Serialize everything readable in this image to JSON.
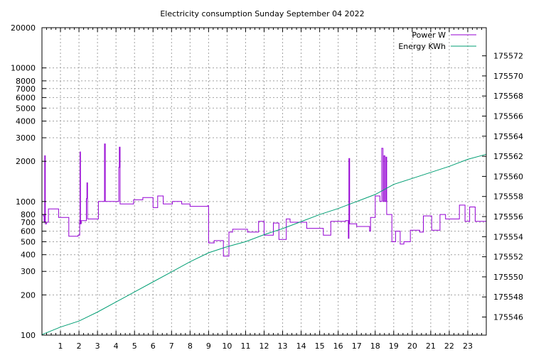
{
  "chart_data": {
    "type": "line",
    "title": "Electricity consumption Sunday September 04 2022",
    "x_axis": {
      "range": [
        0,
        24
      ],
      "ticks": [
        1,
        2,
        3,
        4,
        5,
        6,
        7,
        8,
        9,
        10,
        11,
        12,
        13,
        14,
        15,
        16,
        17,
        18,
        19,
        20,
        21,
        22,
        23
      ],
      "tick_labels": [
        "1",
        "2",
        "3",
        "4",
        "5",
        "6",
        "7",
        "8",
        "9",
        "10",
        "11",
        "12",
        "13",
        "14",
        "15",
        "16",
        "17",
        "18",
        "19",
        "20",
        "21",
        "22",
        "23"
      ],
      "minor_step": 0.25
    },
    "y_axis_left": {
      "scale": "log",
      "range": [
        100,
        20000
      ],
      "ticks": [
        100,
        200,
        300,
        400,
        500,
        600,
        700,
        800,
        1000,
        2000,
        3000,
        4000,
        5000,
        6000,
        7000,
        8000,
        10000,
        20000
      ],
      "tick_labels": [
        "100",
        "200",
        "300",
        "400",
        "500",
        "600",
        "700",
        "800",
        "1000",
        "2000",
        "3000",
        "4000",
        "5000",
        "6000",
        "7000",
        "8000",
        "10000",
        "20000"
      ]
    },
    "y_axis_right": {
      "scale": "linear",
      "range": [
        175544.2,
        175574.8
      ],
      "ticks": [
        175546,
        175548,
        175550,
        175552,
        175554,
        175556,
        175558,
        175560,
        175562,
        175564,
        175566,
        175568,
        175570,
        175572
      ],
      "tick_labels": [
        "175546",
        "175548",
        "175550",
        "175552",
        "175554",
        "175556",
        "175558",
        "175560",
        "175562",
        "175564",
        "175566",
        "175568",
        "175570",
        "175572"
      ]
    },
    "grid": true,
    "legend_position": "top-right",
    "series": [
      {
        "name": "Power W",
        "axis": "left",
        "color": "#9400d3",
        "style": "step",
        "points": [
          [
            0.0,
            800
          ],
          [
            0.08,
            780
          ],
          [
            0.12,
            700
          ],
          [
            0.15,
            2200
          ],
          [
            0.18,
            680
          ],
          [
            0.25,
            700
          ],
          [
            0.35,
            880
          ],
          [
            0.9,
            760
          ],
          [
            1.45,
            550
          ],
          [
            1.95,
            560
          ],
          [
            2.04,
            720
          ],
          [
            2.06,
            2350
          ],
          [
            2.08,
            680
          ],
          [
            2.12,
            720
          ],
          [
            2.4,
            1050
          ],
          [
            2.43,
            1380
          ],
          [
            2.46,
            740
          ],
          [
            3.05,
            1000
          ],
          [
            3.38,
            2700
          ],
          [
            3.42,
            1000
          ],
          [
            4.1,
            1000
          ],
          [
            4.15,
            1800
          ],
          [
            4.18,
            2550
          ],
          [
            4.22,
            960
          ],
          [
            4.95,
            1030
          ],
          [
            5.45,
            1070
          ],
          [
            6.0,
            900
          ],
          [
            6.25,
            1100
          ],
          [
            6.55,
            960
          ],
          [
            7.05,
            1000
          ],
          [
            7.55,
            960
          ],
          [
            8.0,
            920
          ],
          [
            8.95,
            930
          ],
          [
            9.0,
            490
          ],
          [
            9.3,
            510
          ],
          [
            9.8,
            390
          ],
          [
            10.1,
            590
          ],
          [
            10.3,
            620
          ],
          [
            11.1,
            590
          ],
          [
            11.7,
            710
          ],
          [
            12.0,
            560
          ],
          [
            12.5,
            690
          ],
          [
            12.8,
            520
          ],
          [
            13.2,
            740
          ],
          [
            13.4,
            700
          ],
          [
            14.3,
            630
          ],
          [
            15.2,
            560
          ],
          [
            15.6,
            710
          ],
          [
            16.4,
            720
          ],
          [
            16.55,
            530
          ],
          [
            16.58,
            2100
          ],
          [
            16.62,
            680
          ],
          [
            17.0,
            650
          ],
          [
            17.7,
            600
          ],
          [
            17.75,
            760
          ],
          [
            18.0,
            1100
          ],
          [
            18.25,
            1000
          ],
          [
            18.35,
            2500
          ],
          [
            18.42,
            1000
          ],
          [
            18.47,
            2200
          ],
          [
            18.52,
            1000
          ],
          [
            18.58,
            2150
          ],
          [
            18.62,
            800
          ],
          [
            18.9,
            500
          ],
          [
            19.1,
            600
          ],
          [
            19.35,
            480
          ],
          [
            19.55,
            500
          ],
          [
            19.9,
            610
          ],
          [
            20.4,
            590
          ],
          [
            20.6,
            780
          ],
          [
            21.05,
            610
          ],
          [
            21.5,
            800
          ],
          [
            21.8,
            740
          ],
          [
            22.55,
            940
          ],
          [
            22.85,
            710
          ],
          [
            23.1,
            910
          ],
          [
            23.4,
            710
          ],
          [
            24.0,
            700
          ]
        ]
      },
      {
        "name": "Energy KWh",
        "axis": "right",
        "color": "#009e73",
        "style": "line",
        "points": [
          [
            0.0,
            175544.25
          ],
          [
            1.0,
            175545.0
          ],
          [
            2.0,
            175545.6
          ],
          [
            3.0,
            175546.5
          ],
          [
            4.0,
            175547.5
          ],
          [
            5.0,
            175548.5
          ],
          [
            6.0,
            175549.5
          ],
          [
            7.0,
            175550.5
          ],
          [
            8.0,
            175551.5
          ],
          [
            9.0,
            175552.4
          ],
          [
            10.0,
            175553.0
          ],
          [
            11.0,
            175553.5
          ],
          [
            12.0,
            175554.2
          ],
          [
            13.0,
            175554.8
          ],
          [
            14.0,
            175555.5
          ],
          [
            15.0,
            175556.2
          ],
          [
            16.0,
            175556.8
          ],
          [
            17.0,
            175557.5
          ],
          [
            18.0,
            175558.2
          ],
          [
            19.0,
            175559.2
          ],
          [
            20.0,
            175559.8
          ],
          [
            21.0,
            175560.4
          ],
          [
            22.0,
            175561.0
          ],
          [
            23.0,
            175561.7
          ],
          [
            24.0,
            175562.2
          ]
        ]
      }
    ]
  }
}
